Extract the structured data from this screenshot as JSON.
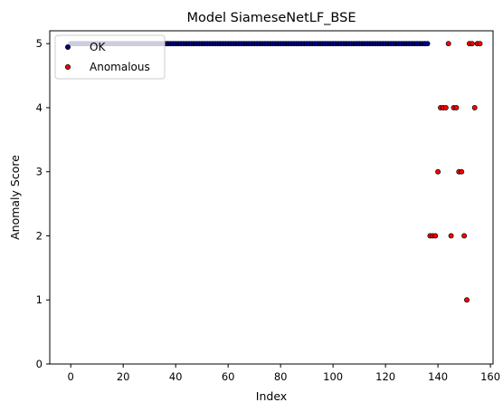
{
  "chart_data": {
    "type": "scatter",
    "title": "Model SiameseNetLF_BSE",
    "xlabel": "Index",
    "ylabel": "Anomaly Score",
    "xlim": [
      -8,
      161
    ],
    "ylim": [
      0,
      5.2
    ],
    "xticks": [
      0,
      20,
      40,
      60,
      80,
      100,
      120,
      140,
      160
    ],
    "yticks": [
      0,
      1,
      2,
      3,
      4,
      5
    ],
    "grid": false,
    "legend_position": "top-left",
    "series": [
      {
        "name": "OK",
        "color": "#00008b",
        "edgecolor": "#000000",
        "x_range": [
          0,
          136
        ],
        "y_value": 5
      },
      {
        "name": "Anomalous",
        "color": "#ff0000",
        "edgecolor": "#000000",
        "points": [
          [
            137,
            2
          ],
          [
            138,
            2
          ],
          [
            139,
            2
          ],
          [
            140,
            3
          ],
          [
            141,
            4
          ],
          [
            142,
            4
          ],
          [
            143,
            4
          ],
          [
            144,
            5
          ],
          [
            145,
            2
          ],
          [
            146,
            4
          ],
          [
            147,
            4
          ],
          [
            148,
            3
          ],
          [
            149,
            3
          ],
          [
            150,
            2
          ],
          [
            151,
            1
          ],
          [
            152,
            5
          ],
          [
            153,
            5
          ],
          [
            154,
            4
          ],
          [
            155,
            5
          ],
          [
            156,
            5
          ]
        ]
      }
    ]
  }
}
